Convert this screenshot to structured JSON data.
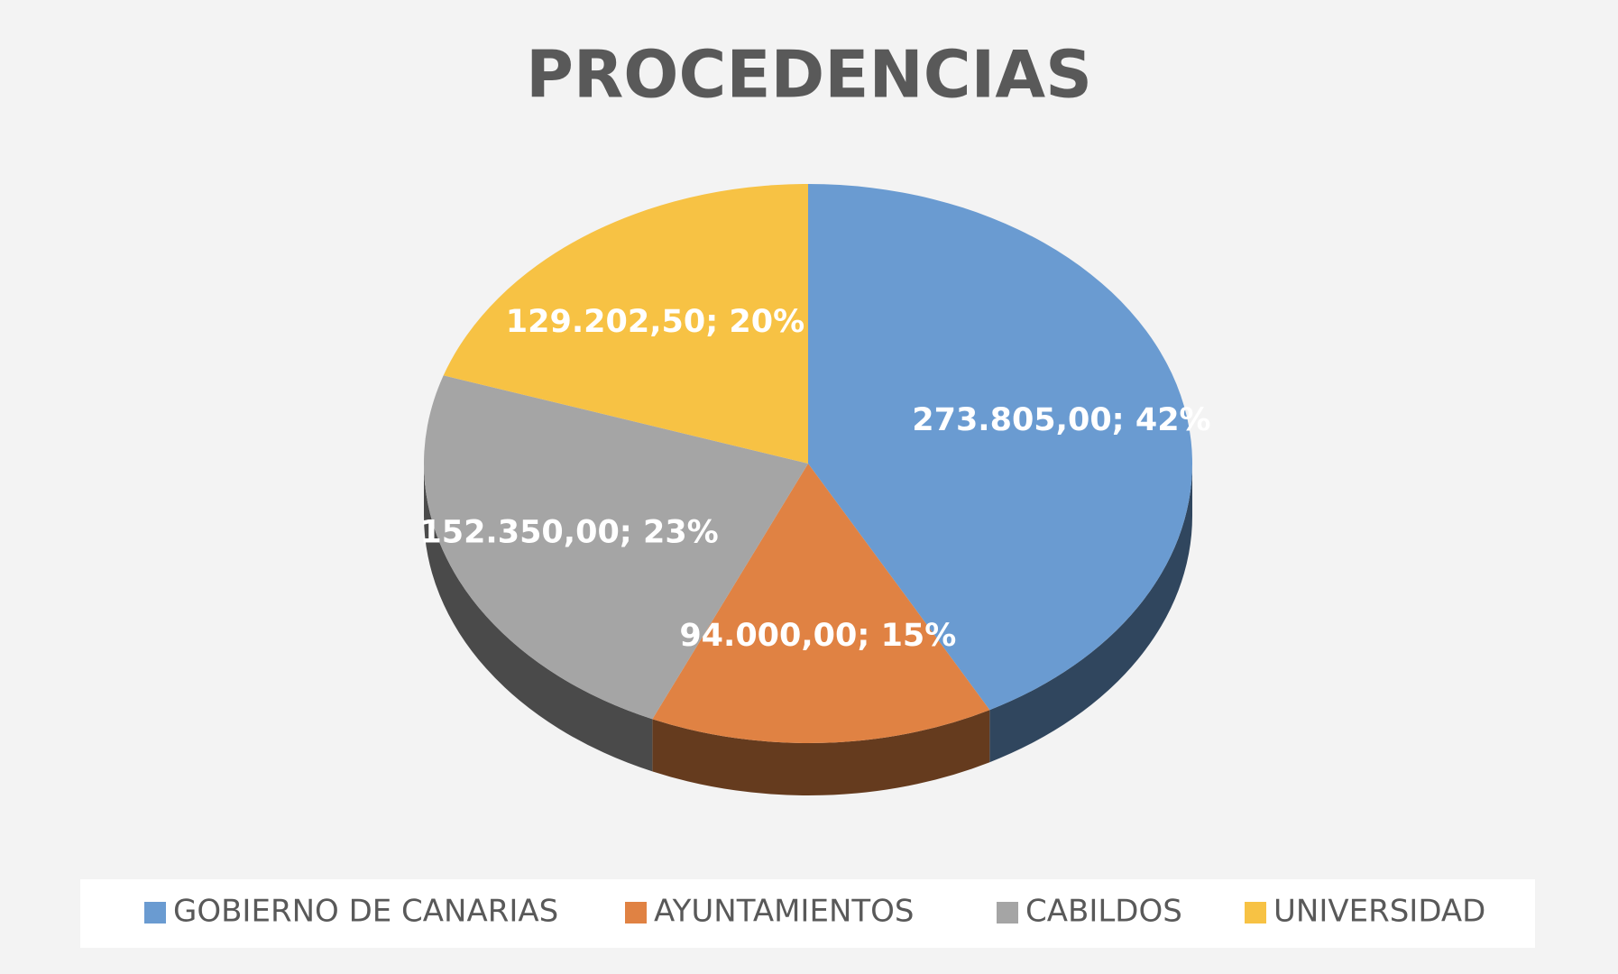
{
  "chart_data": {
    "type": "pie3d",
    "title": "PROCEDENCIAS",
    "series": [
      {
        "name": "GOBIERNO DE CANARIAS",
        "color": "#6a9bd1",
        "values": [
          273805
        ],
        "value_labels": [
          "273.805,00; 42%"
        ]
      },
      {
        "name": "AYUNTAMIENTOS",
        "color": "#e08243",
        "values": [
          94000
        ],
        "value_labels": [
          "94.000,00; 15%"
        ]
      },
      {
        "name": "CABILDOS",
        "color": "#a5a5a5",
        "values": [
          152350
        ],
        "value_labels": [
          "152.350,00; 23%"
        ]
      },
      {
        "name": "UNIVERSIDAD",
        "color": "#f7c244",
        "values": [
          129202.5
        ],
        "value_labels": [
          "129.202,50; 20%"
        ]
      }
    ],
    "legend": "bottom"
  }
}
